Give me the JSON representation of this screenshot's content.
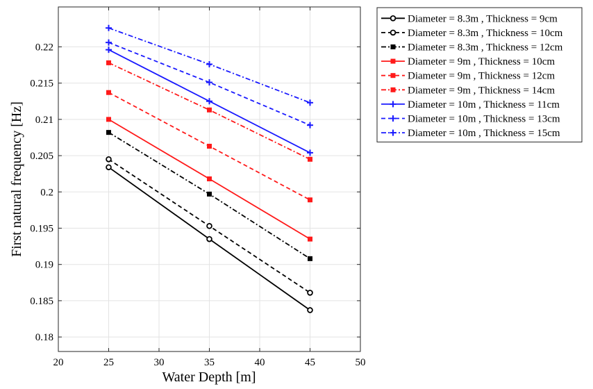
{
  "chart_data": {
    "type": "line",
    "xlabel": "Water Depth [m]",
    "ylabel": "First natural frequency  [Hz]",
    "xlim": [
      20,
      50
    ],
    "ylim": [
      0.178,
      0.2255
    ],
    "xticks": [
      20,
      25,
      30,
      35,
      40,
      45,
      50
    ],
    "yticks": [
      0.18,
      0.185,
      0.19,
      0.195,
      0.2,
      0.205,
      0.21,
      0.215,
      0.22
    ],
    "ytick_labels": [
      "0.18",
      "0.185",
      "0.19",
      "0.195",
      "0.2",
      "0.205",
      "0.21",
      "0.215",
      "0.22"
    ],
    "grid": true,
    "legend_position": "outside-right-top",
    "x": [
      25,
      35,
      45
    ],
    "series": [
      {
        "name": "Diameter = 8.3m , Thickness = 9cm",
        "color": "#000000",
        "dash": "solid",
        "marker": "circle",
        "values": [
          0.2034,
          0.1935,
          0.1837
        ]
      },
      {
        "name": "Diameter = 8.3m , Thickness = 10cm",
        "color": "#000000",
        "dash": "dashed",
        "marker": "circle",
        "values": [
          0.2045,
          0.1953,
          0.1861
        ]
      },
      {
        "name": "Diameter = 8.3m , Thickness = 12cm",
        "color": "#000000",
        "dash": "dashdot",
        "marker": "square",
        "values": [
          0.2082,
          0.1997,
          0.1908
        ]
      },
      {
        "name": "Diameter = 9m , Thickness = 10cm",
        "color": "#ff1a1a",
        "dash": "solid",
        "marker": "square",
        "values": [
          0.21,
          0.2018,
          0.1935
        ]
      },
      {
        "name": "Diameter = 9m , Thickness = 12cm",
        "color": "#ff1a1a",
        "dash": "dashed",
        "marker": "square",
        "values": [
          0.2137,
          0.2063,
          0.1989
        ]
      },
      {
        "name": "Diameter = 9m , Thickness = 14cm",
        "color": "#ff1a1a",
        "dash": "dashdot",
        "marker": "square",
        "values": [
          0.2178,
          0.2113,
          0.2045
        ]
      },
      {
        "name": "Diameter = 10m , Thickness = 11cm",
        "color": "#1a1aff",
        "dash": "solid",
        "marker": "plus",
        "values": [
          0.2196,
          0.2125,
          0.2054
        ]
      },
      {
        "name": "Diameter = 10m , Thickness = 13cm",
        "color": "#1a1aff",
        "dash": "dashed",
        "marker": "plus",
        "values": [
          0.2206,
          0.2151,
          0.2092
        ]
      },
      {
        "name": "Diameter = 10m , Thickness = 15cm",
        "color": "#1a1aff",
        "dash": "dashdot",
        "marker": "plus",
        "values": [
          0.2226,
          0.2176,
          0.2123
        ]
      }
    ]
  }
}
